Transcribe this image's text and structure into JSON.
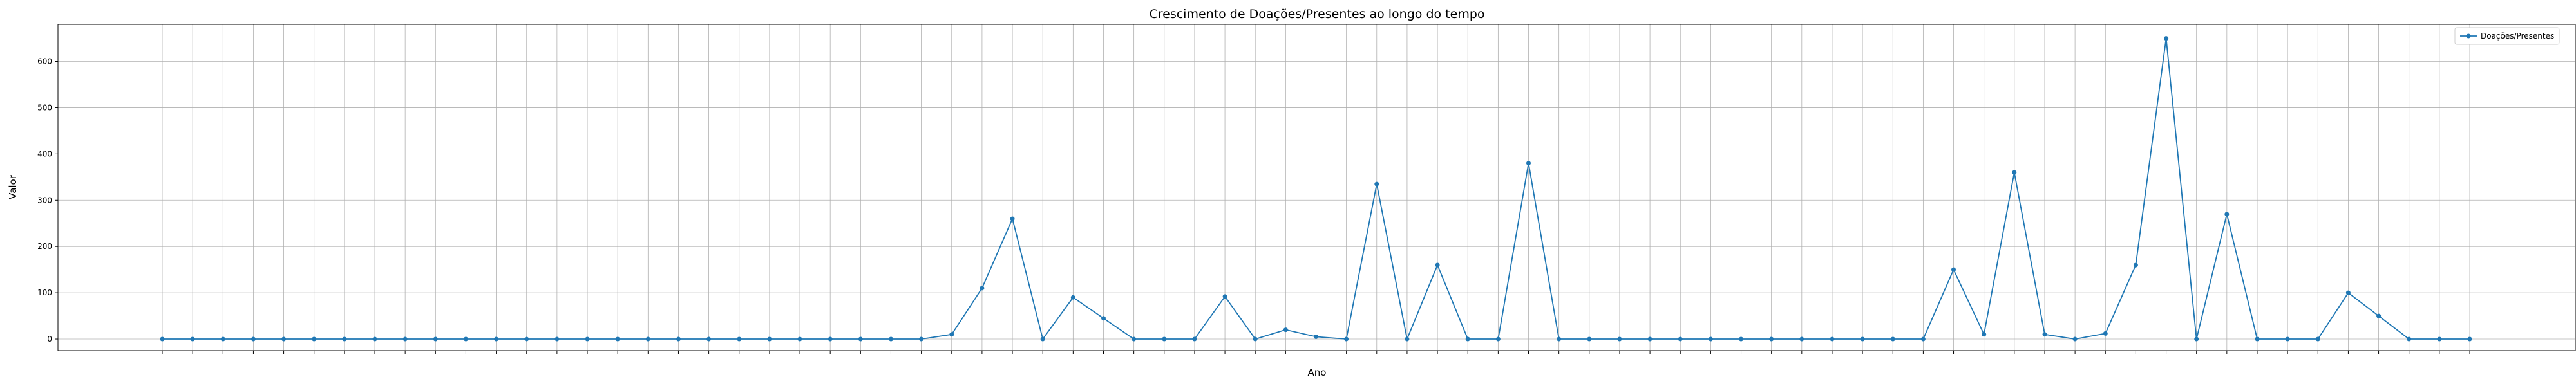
{
  "chart_data": {
    "type": "line",
    "title": "Crescimento de Doações/Presentes ao longo do tempo",
    "xlabel": "Ano",
    "ylabel": "Valor",
    "ylim": [
      -25,
      680
    ],
    "yticks": [
      0,
      100,
      200,
      300,
      400,
      500,
      600
    ],
    "grid": true,
    "legend_position": "top-right",
    "color": "#1f77b4",
    "series": [
      {
        "name": "Doações/Presentes",
        "values": [
          0,
          0,
          0,
          0,
          0,
          0,
          0,
          0,
          0,
          0,
          0,
          0,
          0,
          0,
          0,
          0,
          0,
          0,
          0,
          0,
          0,
          0,
          0,
          0,
          0,
          0,
          10,
          110,
          260,
          0,
          90,
          45,
          0,
          0,
          0,
          92,
          0,
          20,
          5,
          0,
          335,
          0,
          160,
          0,
          0,
          380,
          0,
          0,
          0,
          0,
          0,
          0,
          0,
          0,
          0,
          0,
          0,
          0,
          0,
          150,
          10,
          360,
          10,
          0,
          12,
          160,
          650,
          0,
          270,
          0,
          0,
          0,
          100,
          50,
          0,
          0,
          0
        ]
      }
    ]
  }
}
